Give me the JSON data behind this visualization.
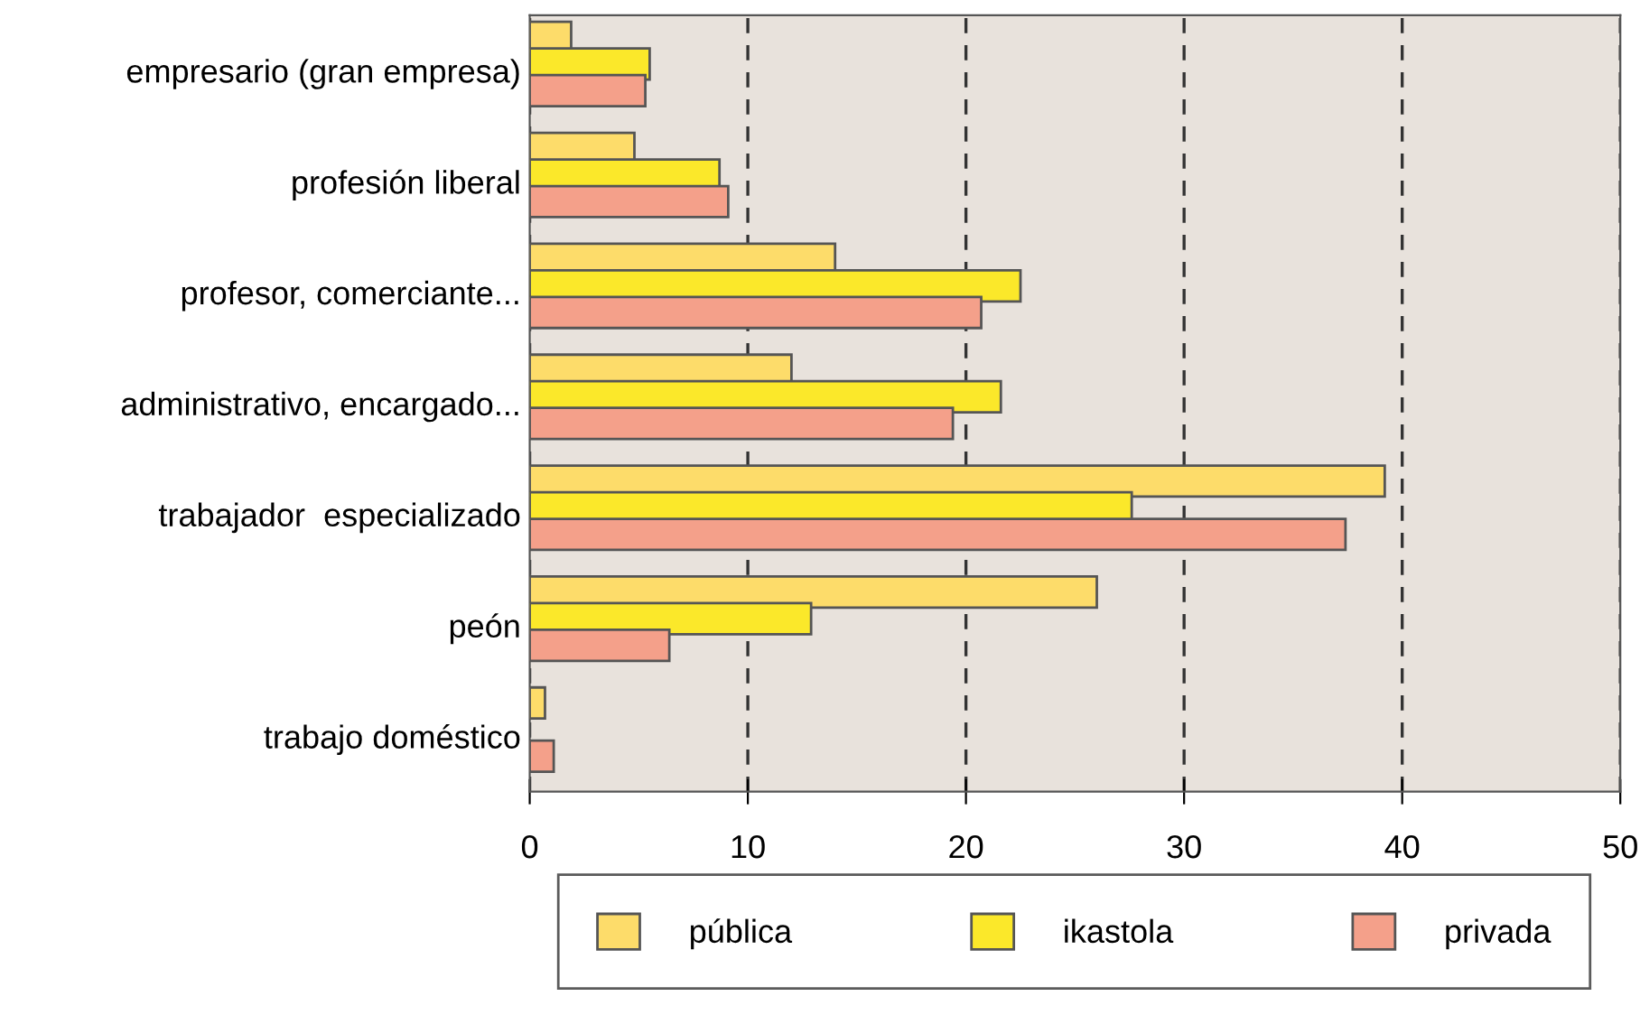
{
  "chart_data": {
    "type": "bar",
    "orientation": "horizontal",
    "categories": [
      "empresario (gran empresa)",
      "profesión liberal",
      "profesor, comerciante...",
      "administrativo, encargado...",
      "trabajador  especializado",
      "peón",
      "trabajo doméstico"
    ],
    "series": [
      {
        "name": "pública",
        "color": "#fddc6a",
        "values": [
          1.9,
          4.8,
          14.0,
          12.0,
          39.2,
          26.0,
          0.7
        ]
      },
      {
        "name": "ikastola",
        "color": "#fbe82a",
        "values": [
          5.5,
          8.7,
          22.5,
          21.6,
          27.6,
          12.9,
          null
        ]
      },
      {
        "name": "privada",
        "color": "#f4a08a",
        "values": [
          5.3,
          9.1,
          20.7,
          19.4,
          37.4,
          6.4,
          1.1
        ]
      }
    ],
    "xlim": [
      0,
      50
    ],
    "xticks": [
      0,
      10,
      20,
      30,
      40,
      50
    ],
    "grid": "x",
    "legend": "bottom"
  }
}
